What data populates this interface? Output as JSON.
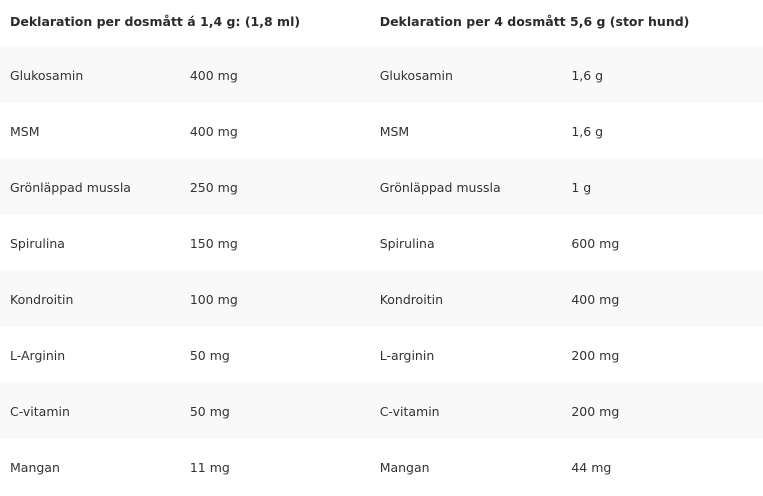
{
  "headers": [
    "Deklaration per dosmått á 1,4 g: (1,8 ml)",
    "",
    "Deklaration per 4 dosmått 5,6 g (stor hund)",
    ""
  ],
  "rows": [
    [
      "Glukosamin",
      "400 mg",
      "Glukosamin",
      "1,6 g"
    ],
    [
      "MSM",
      "400 mg",
      "MSM",
      "1,6 g"
    ],
    [
      "Grönläppad mussla",
      "250 mg",
      "Grönläppad mussla",
      "1 g"
    ],
    [
      "Spirulina",
      "150 mg",
      "Spirulina",
      "600 mg"
    ],
    [
      "Kondroitin",
      "100 mg",
      "Kondroitin",
      "400 mg"
    ],
    [
      "L-Arginin",
      "50 mg",
      "L-arginin",
      "200 mg"
    ],
    [
      "C-vitamin",
      "50 mg",
      "C-vitamin",
      "200 mg"
    ],
    [
      "Mangan",
      "11 mg",
      "Mangan",
      "44 mg"
    ]
  ],
  "colors": {
    "row_shade": "#f9f9f9",
    "text": "#333333"
  }
}
